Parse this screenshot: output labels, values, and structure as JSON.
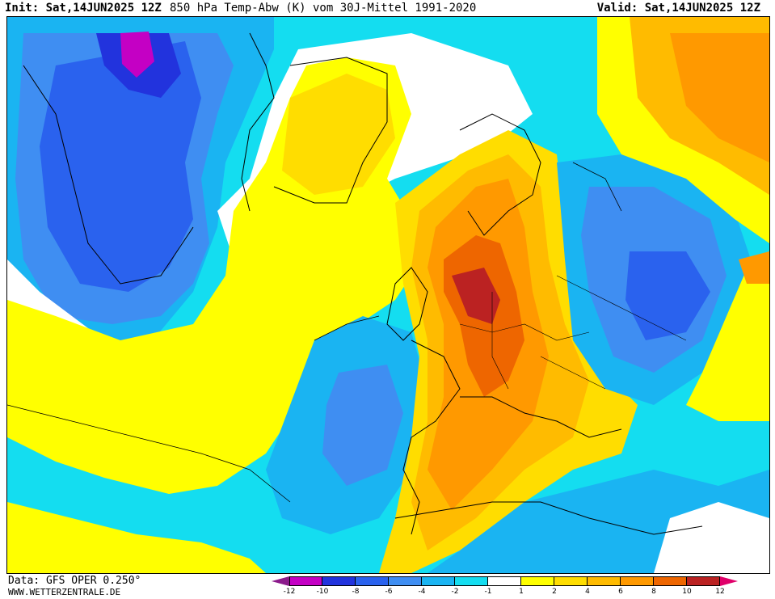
{
  "header": {
    "init": "Init: Sat,14JUN2025 12Z",
    "title": "850 hPa Temp-Abw (K) vom 30J-Mittel 1991-2020",
    "valid": "Valid: Sat,14JUN2025 12Z"
  },
  "footer": {
    "source": "Data: GFS OPER 0.250°",
    "website": "WWW.WETTERZENTRALE.DE"
  },
  "colorbar": {
    "low_arrow_color": "#8b1a8b",
    "high_arrow_color": "#e0006a",
    "colors": [
      "#c400c4",
      "#2233dd",
      "#2a62ee",
      "#3f8ef2",
      "#1ab4f2",
      "#14ddf0",
      "#ffffff",
      "#ffff00",
      "#ffdd00",
      "#ffbb00",
      "#ff9900",
      "#ee6600",
      "#bb2222"
    ],
    "tick_labels": [
      "-12",
      "-10",
      "-8",
      "-6",
      "-4",
      "-2",
      "-1",
      "1",
      "2",
      "4",
      "6",
      "8",
      "10",
      "12"
    ]
  },
  "palette": {
    "minus12": "#c400c4",
    "minus10": "#2233dd",
    "minus8": "#2a62ee",
    "minus6": "#3f8ef2",
    "minus4": "#1ab4f2",
    "minus2": "#14ddf0",
    "neutral": "#ffffff",
    "plus1": "#ffff00",
    "plus2": "#ffdd00",
    "plus4": "#ffbb00",
    "plus6": "#ff9900",
    "plus8": "#ee6600",
    "plus10": "#bb2222"
  }
}
